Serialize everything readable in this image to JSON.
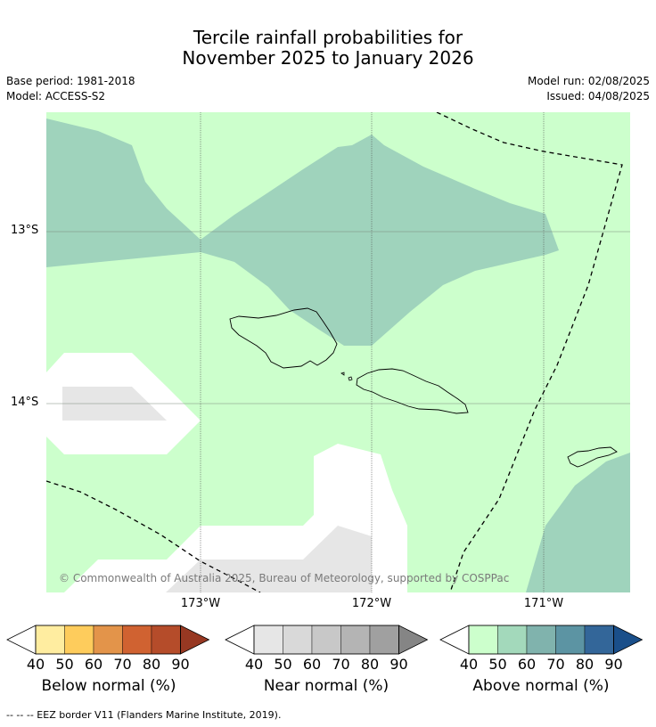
{
  "title_line1": "Tercile rainfall probabilities for",
  "title_line2": "November 2025 to January 2026",
  "meta": {
    "base_period": "Base period: 1981-2018",
    "model": "Model: ACCESS-S2",
    "model_run": "Model run: 02/08/2025",
    "issued": "Issued: 04/08/2025"
  },
  "map": {
    "latitude_labels": [
      "13°S",
      "14°S"
    ],
    "longitude_labels": [
      "173°W",
      "172°W",
      "171°W"
    ],
    "copyright": "© Commonwealth of Australia 2025, Bureau of Meteorology, supported by COSPPac",
    "colors": {
      "ocean_above_40": "#ccffcc",
      "above_50": "#9fd3bc",
      "near_40": "#e6e6e6",
      "no_signal": "#ffffff",
      "eez": "#000000"
    }
  },
  "colorbars": {
    "below": {
      "label": "Below normal (%)",
      "ticks": [
        "40",
        "50",
        "60",
        "70",
        "80",
        "90"
      ],
      "colors": [
        "#ffeda0",
        "#fecc5c",
        "#e3944a",
        "#d06231",
        "#b54c2a",
        "#973822"
      ]
    },
    "near": {
      "label": "Near normal (%)",
      "ticks": [
        "40",
        "50",
        "60",
        "70",
        "80",
        "90"
      ],
      "colors": [
        "#e6e6e6",
        "#d9d9d9",
        "#c8c8c8",
        "#b4b4b4",
        "#a0a0a0",
        "#858585"
      ]
    },
    "above": {
      "label": "Above normal (%)",
      "ticks": [
        "40",
        "50",
        "60",
        "70",
        "80",
        "90"
      ],
      "colors": [
        "#ccffcc",
        "#a3d9bb",
        "#80b3ad",
        "#5c94a3",
        "#336699",
        "#1a4f8a"
      ]
    }
  },
  "footer": "--  --  -- EEZ border V11 (Flanders Marine Institute, 2019)."
}
